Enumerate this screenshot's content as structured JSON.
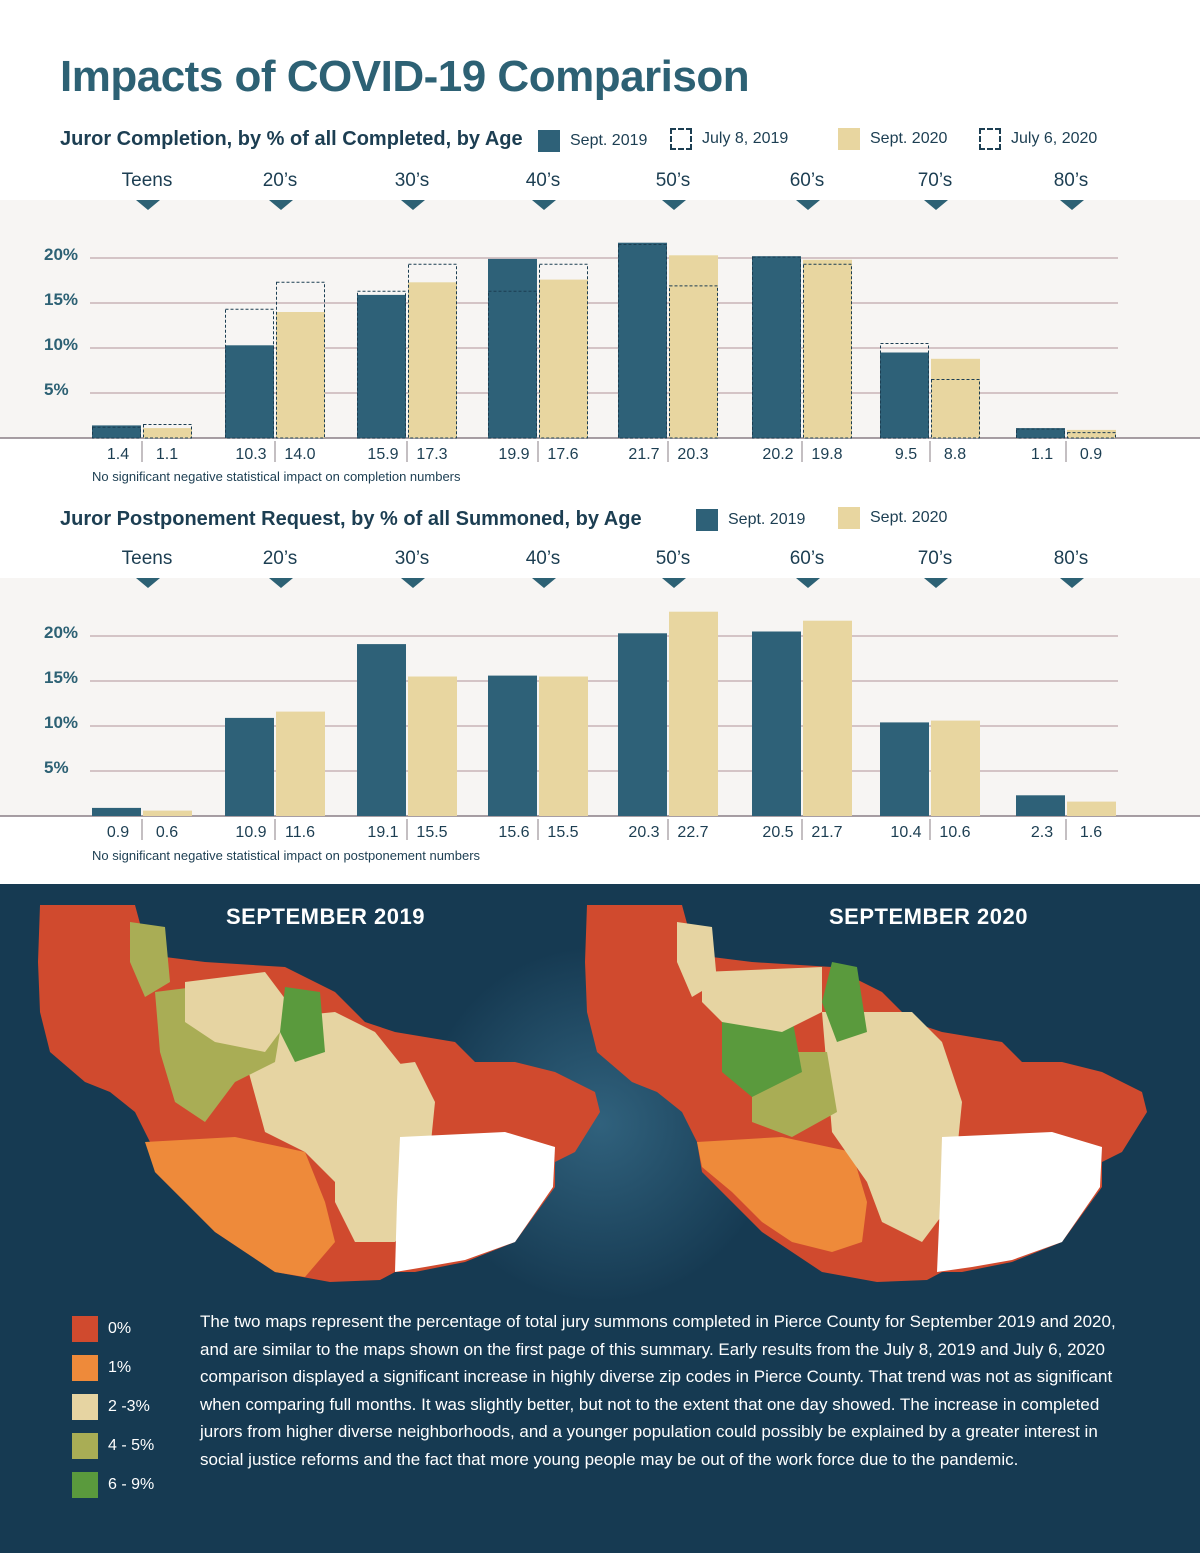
{
  "title": "Impacts of COVID-19 Comparison",
  "colors": {
    "navy": "#2e6178",
    "tan": "#e8d6a0",
    "title": "#2d6174",
    "dark": "#1c3e52"
  },
  "chart_data": [
    {
      "type": "bar",
      "title": "Juror Completion, by % of all Completed, by Age",
      "categories": [
        "Teens",
        "20’s",
        "30’s",
        "40’s",
        "50’s",
        "60’s",
        "70’s",
        "80’s"
      ],
      "series": [
        {
          "name": "Sept. 2019",
          "values": [
            1.4,
            10.3,
            15.9,
            19.9,
            21.7,
            20.2,
            9.5,
            1.1
          ]
        },
        {
          "name": "July 8, 2019",
          "values": [
            1.2,
            14.3,
            16.3,
            16.3,
            21.5,
            20.1,
            10.5,
            1.0
          ]
        },
        {
          "name": "Sept. 2020",
          "values": [
            1.1,
            14.0,
            17.3,
            17.6,
            20.3,
            19.8,
            8.8,
            0.9
          ]
        },
        {
          "name": "July 6, 2020",
          "values": [
            1.5,
            17.3,
            19.3,
            19.3,
            16.9,
            19.3,
            6.5,
            0.6
          ]
        }
      ],
      "yticks": [
        "5%",
        "10%",
        "15%",
        "20%"
      ],
      "ylim": [
        0,
        25
      ],
      "note": "No significant negative statistical impact on completion numbers"
    },
    {
      "type": "bar",
      "title": "Juror Postponement Request, by % of all Summoned, by Age",
      "categories": [
        "Teens",
        "20’s",
        "30’s",
        "40’s",
        "50’s",
        "60’s",
        "70’s",
        "80’s"
      ],
      "series": [
        {
          "name": "Sept. 2019",
          "values": [
            0.9,
            10.9,
            19.1,
            15.6,
            20.3,
            20.5,
            10.4,
            2.3
          ]
        },
        {
          "name": "Sept. 2020",
          "values": [
            0.6,
            11.6,
            15.5,
            15.5,
            22.7,
            21.7,
            10.6,
            1.6
          ]
        }
      ],
      "yticks": [
        "5%",
        "10%",
        "15%",
        "20%"
      ],
      "ylim": [
        0,
        25
      ],
      "note": "No significant negative statistical impact on postponement numbers"
    }
  ],
  "maps": {
    "left_title": "SEPTEMBER 2019",
    "right_title": "SEPTEMBER 2020",
    "legend": [
      {
        "label": "0%",
        "color": "#d04a2e"
      },
      {
        "label": "1%",
        "color": "#ee8a3a"
      },
      {
        "label": "2 -3%",
        "color": "#e6d4a2"
      },
      {
        "label": "4 - 5%",
        "color": "#a9ad55"
      },
      {
        "label": "6 - 9%",
        "color": "#5a9a3d"
      }
    ],
    "description": "The two maps represent the percentage of total jury summons completed in Pierce County for September 2019 and 2020, and are similar to the maps shown on the first page of this summary.  Early results from the July 8, 2019 and July 6, 2020 comparison displayed a significant increase in highly diverse zip codes in Pierce County.  That trend was not as significant when comparing full months.  It was slightly better, but not to the extent that one day showed.  The increase in completed jurors from higher diverse neighborhoods, and a younger population could possibly be explained by a greater interest in social justice reforms and the fact that more young people may be out of the work force due to the pandemic."
  }
}
